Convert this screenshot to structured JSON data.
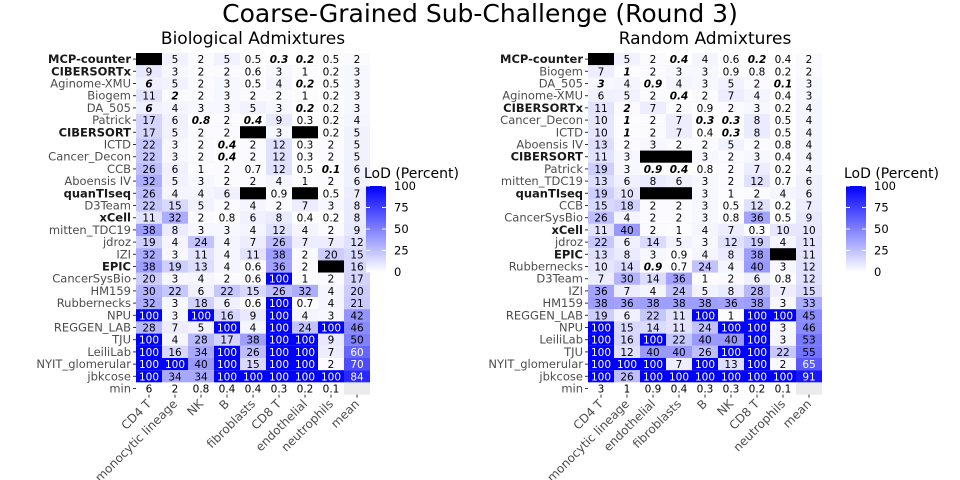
{
  "figure_title": "Coarse-Grained Sub-Challenge (Round 3)",
  "legend": {
    "title": "LoD (Percent)",
    "ticks": [
      "100",
      "75",
      "50",
      "25",
      "0"
    ],
    "color_low": "#ffffff",
    "color_high": "#0000ff"
  },
  "colors": {
    "missing": "#000000",
    "panel_bg": "#ebebeb"
  },
  "chart_data": [
    {
      "type": "heatmap",
      "title": "Biological Admixtures",
      "xlabel": "",
      "ylabel": "",
      "x": [
        "CD4 T",
        "monocytic lineage",
        "NK",
        "B",
        "fibroblasts",
        "CD8 T",
        "endothelial",
        "neutrophils",
        "mean"
      ],
      "y": [
        "MCP-counter",
        "CIBERSORTx",
        "Aginome-XMU",
        "Biogem",
        "DA_505",
        "Patrick",
        "CIBERSORT",
        "ICTD",
        "Cancer_Decon",
        "CCB",
        "Aboensis IV",
        "quanTIseq",
        "D3Team",
        "xCell",
        "mitten_TDC19",
        "jdroz",
        "IZI",
        "EPIC",
        "CancerSysBio",
        "HM159",
        "Rubbernecks",
        "NPU",
        "REGGEN_LAB",
        "TJU",
        "LeiliLab",
        "NYIT_glomerular",
        "jbkcose",
        "min"
      ],
      "bold_rows": [
        "MCP-counter",
        "CIBERSORTx",
        "CIBERSORT",
        "quanTIseq",
        "xCell",
        "EPIC"
      ],
      "color_scale": {
        "min": 0,
        "max": 100,
        "missing_color": "#000000"
      },
      "values": [
        [
          null,
          5,
          2,
          5,
          0.5,
          0.3,
          0.2,
          0.5,
          2
        ],
        [
          9,
          3,
          2,
          2,
          0.6,
          3,
          1,
          0.2,
          3
        ],
        [
          6,
          5,
          2,
          3,
          0.5,
          4,
          0.2,
          0.5,
          3
        ],
        [
          11,
          2,
          2,
          3,
          2,
          2,
          1,
          0.2,
          3
        ],
        [
          6,
          4,
          3,
          3,
          5,
          3,
          0.2,
          0.2,
          3
        ],
        [
          17,
          6,
          0.8,
          2,
          0.4,
          9,
          0.3,
          0.2,
          4
        ],
        [
          17,
          5,
          2,
          2,
          null,
          3,
          null,
          0.2,
          5
        ],
        [
          22,
          3,
          2,
          0.4,
          2,
          12,
          0.3,
          2,
          5
        ],
        [
          22,
          3,
          2,
          0.4,
          2,
          12,
          0.3,
          2,
          5
        ],
        [
          26,
          6,
          1,
          2,
          0.7,
          12,
          0.5,
          0.1,
          6
        ],
        [
          32,
          5,
          3,
          2,
          2,
          4,
          1,
          2,
          6
        ],
        [
          26,
          4,
          4,
          6,
          null,
          0.9,
          null,
          0.5,
          7
        ],
        [
          22,
          15,
          5,
          2,
          4,
          2,
          7,
          3,
          8
        ],
        [
          11,
          32,
          2,
          0.8,
          6,
          8,
          0.4,
          0.2,
          8
        ],
        [
          38,
          8,
          3,
          3,
          4,
          12,
          4,
          2,
          9
        ],
        [
          19,
          4,
          24,
          4,
          7,
          26,
          7,
          7,
          12
        ],
        [
          32,
          3,
          11,
          4,
          11,
          38,
          2,
          20,
          15
        ],
        [
          38,
          19,
          13,
          4,
          0.6,
          36,
          2,
          null,
          16
        ],
        [
          20,
          3,
          4,
          2,
          0.6,
          100,
          1,
          2,
          17
        ],
        [
          30,
          22,
          6,
          22,
          15,
          26,
          32,
          4,
          20
        ],
        [
          32,
          3,
          18,
          6,
          0.6,
          100,
          0.7,
          4,
          21
        ],
        [
          100,
          3,
          100,
          16,
          9,
          100,
          4,
          3,
          42
        ],
        [
          28,
          7,
          5,
          100,
          4,
          100,
          24,
          100,
          46
        ],
        [
          100,
          4,
          28,
          17,
          38,
          100,
          100,
          9,
          50
        ],
        [
          100,
          16,
          34,
          100,
          26,
          100,
          100,
          7,
          60
        ],
        [
          100,
          100,
          40,
          100,
          15,
          100,
          100,
          2,
          70
        ],
        [
          100,
          34,
          34,
          100,
          100,
          100,
          100,
          100,
          84
        ],
        [
          6,
          2,
          0.8,
          0.4,
          0.4,
          0.3,
          0.2,
          0.1,
          null
        ]
      ],
      "italic_bold_cells": [
        [
          0,
          5
        ],
        [
          0,
          6
        ],
        [
          2,
          0
        ],
        [
          2,
          6
        ],
        [
          3,
          1
        ],
        [
          4,
          0
        ],
        [
          4,
          6
        ],
        [
          5,
          2
        ],
        [
          5,
          4
        ],
        [
          7,
          3
        ],
        [
          8,
          3
        ],
        [
          9,
          7
        ]
      ]
    },
    {
      "type": "heatmap",
      "title": "Random Admixtures",
      "xlabel": "",
      "ylabel": "",
      "x": [
        "CD4 T",
        "monocytic lineage",
        "endothelial",
        "fibroblasts",
        "B",
        "NK",
        "CD8 T",
        "neutrophils",
        "mean"
      ],
      "y": [
        "MCP-counter",
        "Biogem",
        "DA_505",
        "Aginome-XMU",
        "CIBERSORTx",
        "Cancer_Decon",
        "ICTD",
        "Aboensis IV",
        "CIBERSORT",
        "Patrick",
        "mitten_TDC19",
        "quanTIseq",
        "CCB",
        "CancerSysBio",
        "xCell",
        "jdroz",
        "EPIC",
        "Rubbernecks",
        "D3Team",
        "IZI",
        "HM159",
        "REGGEN_LAB",
        "NPU",
        "LeiliLab",
        "TJU",
        "NYIT_glomerular",
        "jbkcose",
        "min"
      ],
      "bold_rows": [
        "MCP-counter",
        "CIBERSORTx",
        "CIBERSORT",
        "quanTIseq",
        "xCell",
        "EPIC"
      ],
      "color_scale": {
        "min": 0,
        "max": 100,
        "missing_color": "#000000"
      },
      "values": [
        [
          null,
          5,
          2,
          0.4,
          4,
          0.6,
          0.2,
          0.4,
          2
        ],
        [
          7,
          1,
          2,
          3,
          3,
          0.9,
          0.8,
          0.2,
          2
        ],
        [
          3,
          4,
          0.9,
          4,
          3,
          5,
          2,
          0.1,
          3
        ],
        [
          6,
          5,
          2,
          0.4,
          2,
          7,
          4,
          0.4,
          3
        ],
        [
          11,
          2,
          7,
          2,
          0.9,
          2,
          3,
          0.2,
          4
        ],
        [
          10,
          1,
          2,
          7,
          0.3,
          0.3,
          8,
          0.5,
          4
        ],
        [
          10,
          1,
          2,
          7,
          0.4,
          0.3,
          8,
          0.5,
          4
        ],
        [
          13,
          2,
          3,
          2,
          2,
          5,
          2,
          0.8,
          4
        ],
        [
          11,
          3,
          null,
          null,
          3,
          2,
          3,
          0.4,
          4
        ],
        [
          19,
          3,
          0.9,
          0.4,
          0.8,
          2,
          7,
          0.2,
          4
        ],
        [
          13,
          6,
          8,
          6,
          3,
          2,
          12,
          0.7,
          6
        ],
        [
          19,
          10,
          null,
          null,
          3,
          1,
          2,
          4,
          6
        ],
        [
          15,
          18,
          2,
          2,
          3,
          0.5,
          12,
          0.2,
          7
        ],
        [
          26,
          4,
          2,
          2,
          3,
          0.8,
          36,
          0.5,
          9
        ],
        [
          11,
          40,
          2,
          1,
          4,
          7,
          0.3,
          10,
          10
        ],
        [
          22,
          6,
          14,
          5,
          3,
          12,
          19,
          4,
          11
        ],
        [
          13,
          8,
          3,
          0.9,
          4,
          8,
          38,
          null,
          11
        ],
        [
          10,
          14,
          0.9,
          0.7,
          24,
          4,
          40,
          3,
          12
        ],
        [
          7,
          30,
          14,
          36,
          1,
          2,
          6,
          0.8,
          12
        ],
        [
          36,
          7,
          4,
          24,
          5,
          8,
          28,
          7,
          15
        ],
        [
          38,
          36,
          38,
          38,
          38,
          36,
          38,
          3,
          33
        ],
        [
          19,
          6,
          22,
          11,
          100,
          1,
          100,
          100,
          45
        ],
        [
          100,
          15,
          14,
          11,
          24,
          100,
          100,
          3,
          46
        ],
        [
          100,
          16,
          100,
          22,
          40,
          40,
          100,
          3,
          53
        ],
        [
          100,
          12,
          40,
          40,
          26,
          100,
          100,
          22,
          55
        ],
        [
          100,
          100,
          100,
          7,
          100,
          13,
          100,
          2,
          65
        ],
        [
          100,
          26,
          100,
          100,
          100,
          100,
          100,
          100,
          91
        ],
        [
          3,
          1,
          0.9,
          0.4,
          0.3,
          0.3,
          0.2,
          0.1,
          null
        ]
      ],
      "italic_bold_cells": [
        [
          0,
          3
        ],
        [
          0,
          6
        ],
        [
          1,
          1
        ],
        [
          2,
          0
        ],
        [
          2,
          2
        ],
        [
          2,
          7
        ],
        [
          3,
          3
        ],
        [
          4,
          1
        ],
        [
          5,
          1
        ],
        [
          5,
          4
        ],
        [
          5,
          5
        ],
        [
          6,
          1
        ],
        [
          6,
          5
        ],
        [
          9,
          2
        ],
        [
          9,
          3
        ],
        [
          17,
          2
        ]
      ]
    }
  ]
}
